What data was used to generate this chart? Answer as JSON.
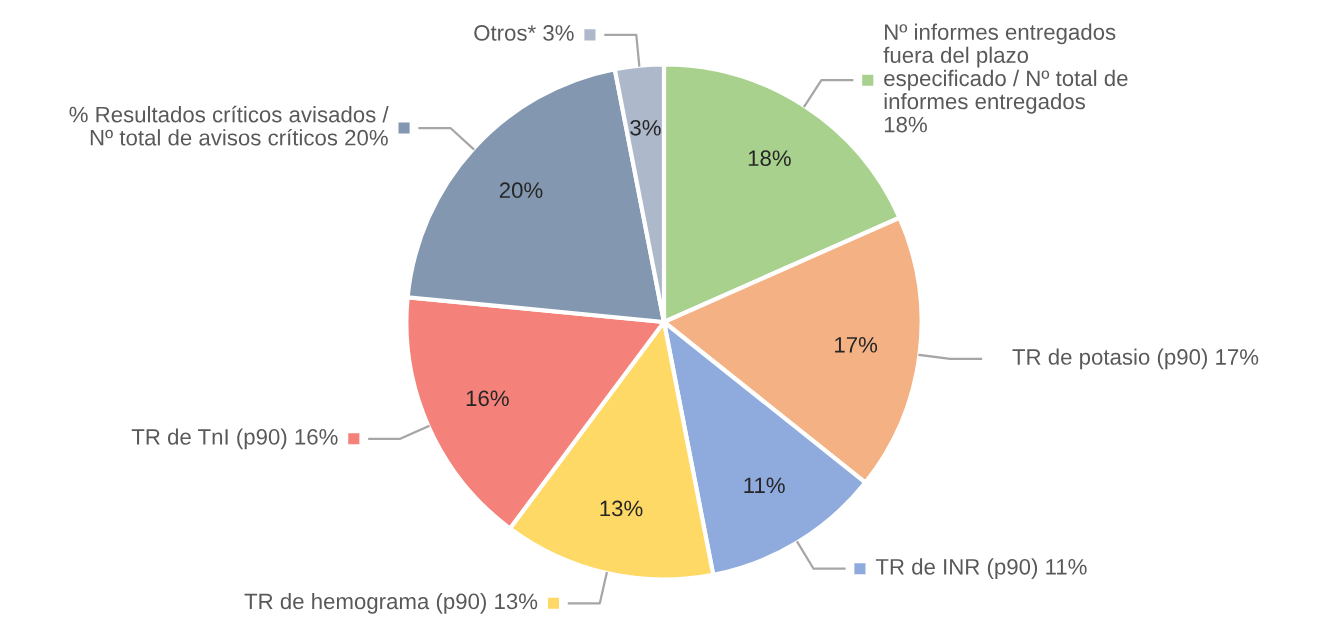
{
  "chart_data": {
    "type": "pie",
    "categories": [
      "Nº informes entregados\nfuera del plazo\nespecificado / Nº total de\ninformes entregados\n18%",
      "TR de potasio (p90) 17%",
      "TR de INR (p90) 11%",
      "TR de hemograma (p90) 13%",
      "TR de TnI (p90) 16%",
      "% Resultados críticos avisados /\nNº total de avisos críticos 20%",
      "Otros* 3%"
    ],
    "values": [
      18,
      17,
      11,
      13,
      16,
      20,
      3
    ],
    "value_labels": [
      "18%",
      "17%",
      "11%",
      "13%",
      "16%",
      "20%",
      "3%"
    ],
    "legend": "left",
    "colors": [
      "#a9d18e",
      "#f4b183",
      "#8faadc",
      "#ffd966",
      "#f4817a",
      "#8497b0",
      "#adb9ca"
    ]
  }
}
